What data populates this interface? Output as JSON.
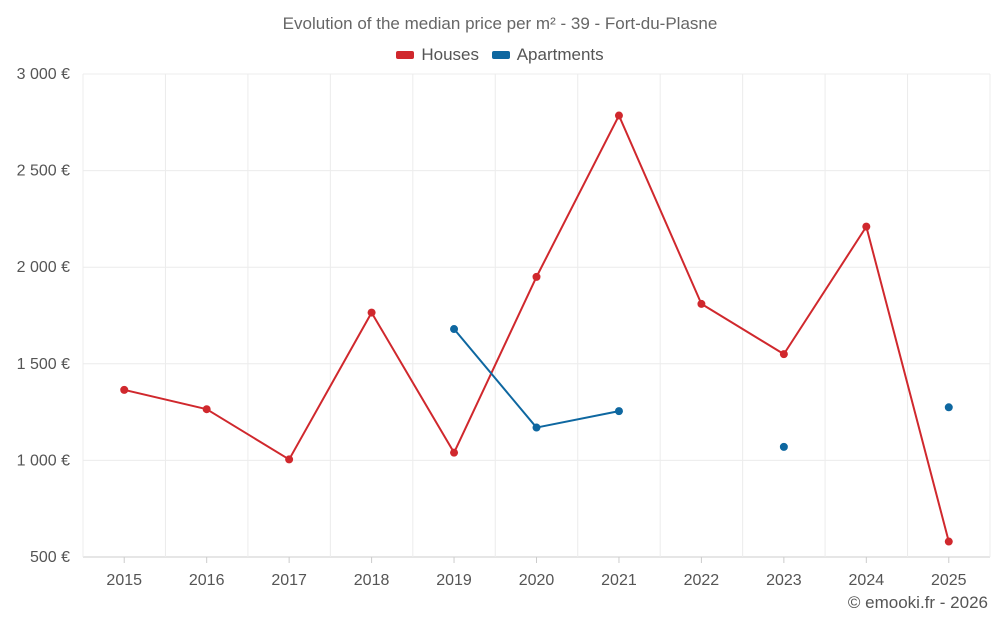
{
  "chart_data": {
    "type": "line",
    "title": "Evolution of the median price per m² - 39 - Fort-du-Plasne",
    "categories": [
      "2015",
      "2016",
      "2017",
      "2018",
      "2019",
      "2020",
      "2021",
      "2022",
      "2023",
      "2024",
      "2025"
    ],
    "y_ticks": [
      "500 €",
      "1 000 €",
      "1 500 €",
      "2 000 €",
      "2 500 €",
      "3 000 €"
    ],
    "y_tick_values": [
      500,
      1000,
      1500,
      2000,
      2500,
      3000
    ],
    "ylim": [
      500,
      3000
    ],
    "xlabel": "",
    "ylabel": "",
    "grid": true,
    "legend_position": "top-center",
    "series": [
      {
        "name": "Houses",
        "color": "#d0282d",
        "values": [
          1365,
          1265,
          1005,
          1765,
          1040,
          1950,
          2785,
          1810,
          1550,
          2210,
          580
        ]
      },
      {
        "name": "Apartments",
        "color": "#0e67a0",
        "values": [
          null,
          null,
          null,
          null,
          1680,
          1170,
          1255,
          null,
          1070,
          null,
          1275
        ]
      }
    ]
  },
  "footer": {
    "credit": "© emooki.fr - 2026"
  }
}
